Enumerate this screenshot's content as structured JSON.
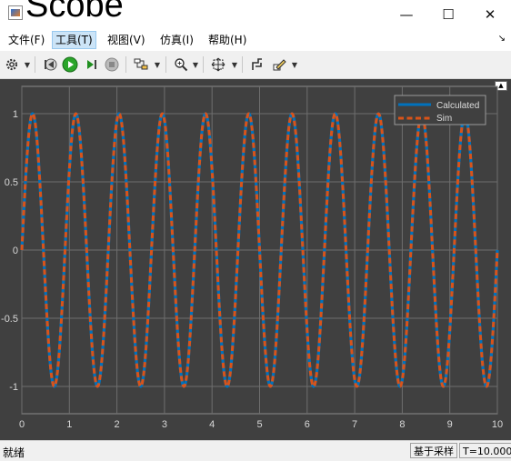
{
  "window": {
    "title": "Scobe",
    "minimize_glyph": "—",
    "maximize_glyph": "☐",
    "close_glyph": "✕",
    "app_icon": "matlab-figure-icon"
  },
  "menu": {
    "items": [
      "文件(F)",
      "工具(T)",
      "视图(V)",
      "仿真(I)",
      "帮助(H)"
    ],
    "dock_arrow": "↘"
  },
  "toolbar": {
    "icons": [
      "gear-icon",
      "step-back-icon",
      "run-icon",
      "step-forward-icon",
      "stop-icon",
      "signal-select-icon",
      "zoom-icon",
      "fit-to-view-icon",
      "cursor-measure-icon",
      "highlight-block-icon"
    ]
  },
  "status": {
    "left": "就绪",
    "mode": "基于采样",
    "time": "T=10.000"
  },
  "chart_data": {
    "type": "line",
    "x": {
      "min": 0,
      "max": 10,
      "ticks": [
        "0",
        "1",
        "2",
        "3",
        "4",
        "5",
        "6",
        "7",
        "8",
        "9",
        "10"
      ]
    },
    "y": {
      "min": -1.2,
      "max": 1.2,
      "ticks": [
        "1",
        "0.5",
        "0",
        "-0.5",
        "-1"
      ],
      "tick_values": [
        1,
        0.5,
        0,
        -0.5,
        -1
      ]
    },
    "grid": true,
    "legend_position": "top-right",
    "function": "sin(2*pi*f*t)",
    "frequency_hz": 1.1,
    "series": [
      {
        "name": "Calculated",
        "color": "#0072bd",
        "style": "solid"
      },
      {
        "name": "Sim",
        "color": "#d95319",
        "style": "dashed"
      }
    ]
  }
}
